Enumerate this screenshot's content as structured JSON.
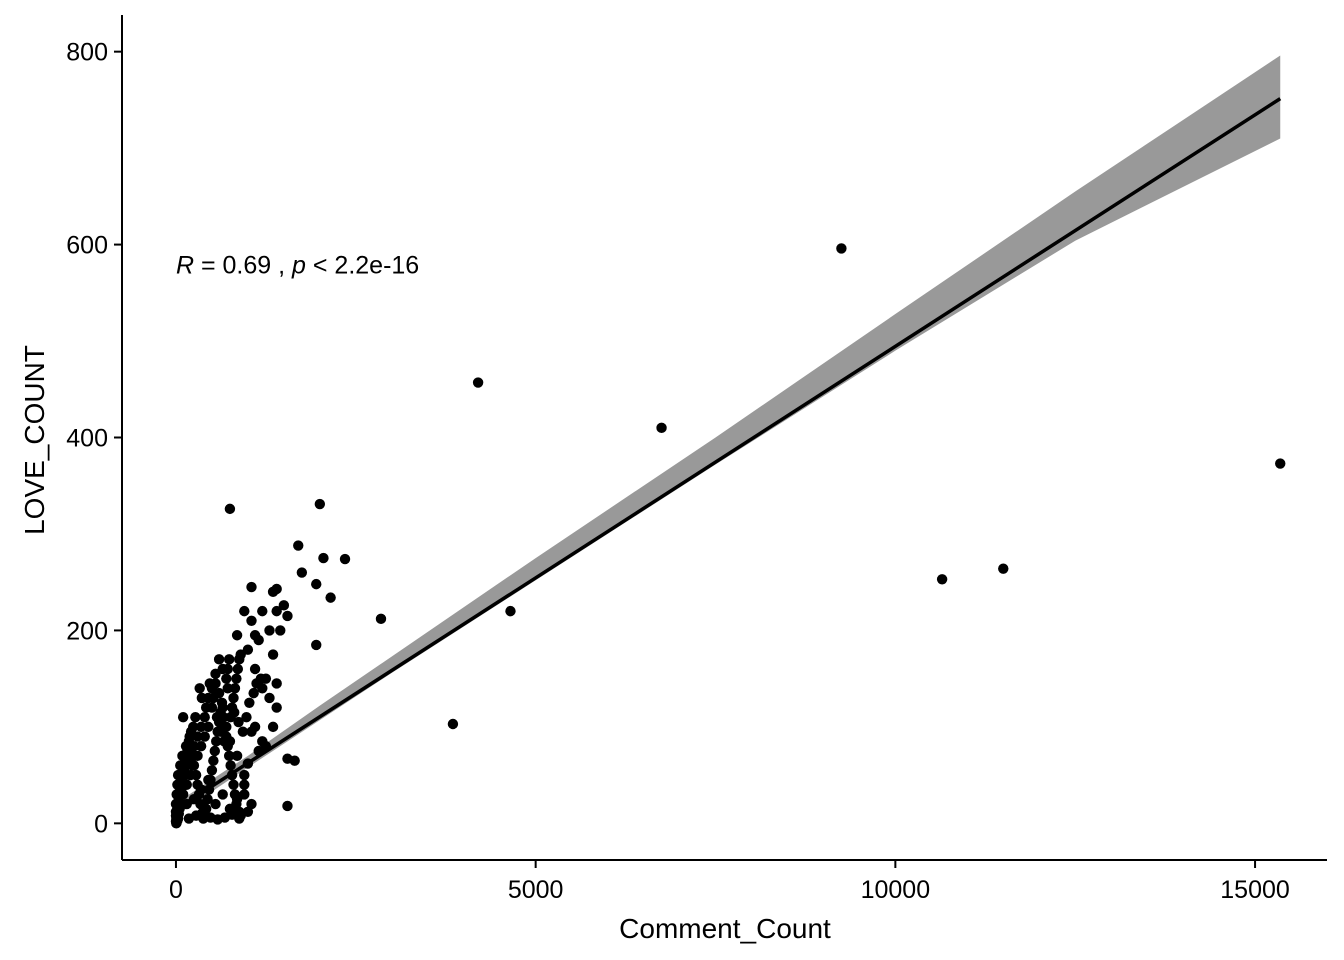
{
  "chart_data": {
    "type": "scatter",
    "xlabel": "Comment_Count",
    "ylabel": "LOVE_COUNT",
    "xlim": [
      -750,
      16000
    ],
    "ylim": [
      -38,
      838
    ],
    "x_ticks": [
      0,
      5000,
      10000,
      15000
    ],
    "x_tick_labels": [
      "0",
      "5000",
      "10000",
      "15000"
    ],
    "y_ticks": [
      0,
      200,
      400,
      600,
      800
    ],
    "y_tick_labels": [
      "0",
      "200",
      "400",
      "600",
      "800"
    ],
    "grid": false,
    "legend": "none",
    "annotation": {
      "r_symbol": "R",
      "r_text": " = 0.69 , ",
      "p_symbol": "p",
      "p_text": " < 2.2e-16",
      "x": 0,
      "y": 570
    },
    "regression": {
      "x_range": [
        0,
        15350
      ],
      "intercept": 14.5,
      "slope": 0.048,
      "ci_lower": [
        [
          0,
          8
        ],
        [
          1000,
          58
        ],
        [
          2000,
          107
        ],
        [
          3000,
          156
        ],
        [
          5000,
          252
        ],
        [
          7500,
          372
        ],
        [
          10000,
          490
        ],
        [
          12500,
          604
        ],
        [
          15350,
          710
        ]
      ],
      "ci_upper": [
        [
          0,
          21
        ],
        [
          1000,
          70
        ],
        [
          2000,
          122
        ],
        [
          3000,
          173
        ],
        [
          5000,
          275
        ],
        [
          7500,
          400
        ],
        [
          10000,
          528
        ],
        [
          12500,
          655
        ],
        [
          15350,
          796
        ]
      ]
    },
    "points": [
      [
        9250,
        596
      ],
      [
        4200,
        457
      ],
      [
        6750,
        410
      ],
      [
        15350,
        373
      ],
      [
        11500,
        264
      ],
      [
        10650,
        253
      ],
      [
        4650,
        220
      ],
      [
        3850,
        103
      ],
      [
        2850,
        212
      ],
      [
        2350,
        274
      ],
      [
        2000,
        331
      ],
      [
        2050,
        275
      ],
      [
        2150,
        234
      ],
      [
        1950,
        248
      ],
      [
        1700,
        288
      ],
      [
        1750,
        260
      ],
      [
        1950,
        185
      ],
      [
        1550,
        67
      ],
      [
        1650,
        65
      ],
      [
        1550,
        18
      ],
      [
        750,
        326
      ],
      [
        1050,
        245
      ],
      [
        1400,
        243
      ],
      [
        1350,
        240
      ],
      [
        1500,
        226
      ],
      [
        1550,
        215
      ],
      [
        1450,
        200
      ],
      [
        1400,
        220
      ],
      [
        1300,
        200
      ],
      [
        1200,
        220
      ],
      [
        1150,
        190
      ],
      [
        1100,
        195
      ],
      [
        1050,
        210
      ],
      [
        950,
        220
      ],
      [
        850,
        195
      ],
      [
        900,
        175
      ],
      [
        1000,
        180
      ],
      [
        1100,
        160
      ],
      [
        1200,
        140
      ],
      [
        1250,
        150
      ],
      [
        1300,
        130
      ],
      [
        1350,
        175
      ],
      [
        1400,
        145
      ],
      [
        1400,
        120
      ],
      [
        1350,
        100
      ],
      [
        1250,
        80
      ],
      [
        1200,
        85
      ],
      [
        1150,
        75
      ],
      [
        1100,
        100
      ],
      [
        1050,
        95
      ],
      [
        1000,
        62
      ],
      [
        950,
        50
      ],
      [
        1050,
        20
      ],
      [
        1000,
        12
      ],
      [
        950,
        40
      ],
      [
        850,
        70
      ],
      [
        750,
        85
      ],
      [
        700,
        100
      ],
      [
        650,
        120
      ],
      [
        600,
        135
      ],
      [
        550,
        145
      ],
      [
        500,
        140
      ],
      [
        450,
        130
      ],
      [
        400,
        110
      ],
      [
        350,
        100
      ],
      [
        300,
        90
      ],
      [
        250,
        80
      ],
      [
        200,
        70
      ],
      [
        150,
        60
      ],
      [
        100,
        110
      ],
      [
        120,
        50
      ],
      [
        80,
        40
      ],
      [
        60,
        30
      ],
      [
        50,
        20
      ],
      [
        40,
        10
      ],
      [
        30,
        5
      ],
      [
        20,
        3
      ],
      [
        10,
        1
      ],
      [
        5,
        0
      ],
      [
        0,
        2
      ],
      [
        0,
        8
      ],
      [
        20,
        15
      ],
      [
        40,
        25
      ],
      [
        70,
        35
      ],
      [
        90,
        45
      ],
      [
        110,
        55
      ],
      [
        130,
        65
      ],
      [
        160,
        75
      ],
      [
        180,
        85
      ],
      [
        210,
        95
      ],
      [
        230,
        60
      ],
      [
        260,
        70
      ],
      [
        280,
        50
      ],
      [
        300,
        40
      ],
      [
        320,
        30
      ],
      [
        340,
        20
      ],
      [
        360,
        10
      ],
      [
        380,
        5
      ],
      [
        400,
        8
      ],
      [
        420,
        15
      ],
      [
        440,
        25
      ],
      [
        460,
        35
      ],
      [
        480,
        45
      ],
      [
        500,
        55
      ],
      [
        520,
        65
      ],
      [
        540,
        75
      ],
      [
        560,
        85
      ],
      [
        580,
        95
      ],
      [
        600,
        105
      ],
      [
        620,
        115
      ],
      [
        640,
        125
      ],
      [
        660,
        110
      ],
      [
        680,
        100
      ],
      [
        700,
        90
      ],
      [
        720,
        80
      ],
      [
        740,
        70
      ],
      [
        760,
        60
      ],
      [
        780,
        50
      ],
      [
        800,
        40
      ],
      [
        820,
        30
      ],
      [
        840,
        20
      ],
      [
        860,
        10
      ],
      [
        880,
        5
      ],
      [
        900,
        8
      ],
      [
        760,
        110
      ],
      [
        780,
        120
      ],
      [
        800,
        130
      ],
      [
        820,
        140
      ],
      [
        840,
        150
      ],
      [
        860,
        160
      ],
      [
        880,
        170
      ],
      [
        700,
        150
      ],
      [
        720,
        160
      ],
      [
        740,
        170
      ],
      [
        650,
        160
      ],
      [
        600,
        170
      ],
      [
        550,
        155
      ],
      [
        500,
        120
      ],
      [
        450,
        100
      ],
      [
        400,
        90
      ],
      [
        350,
        80
      ],
      [
        300,
        70
      ],
      [
        250,
        60
      ],
      [
        200,
        50
      ],
      [
        150,
        40
      ],
      [
        100,
        30
      ],
      [
        50,
        15
      ],
      [
        150,
        20
      ],
      [
        250,
        25
      ],
      [
        350,
        35
      ],
      [
        450,
        45
      ],
      [
        550,
        20
      ],
      [
        650,
        30
      ],
      [
        750,
        15
      ],
      [
        850,
        25
      ],
      [
        950,
        30
      ],
      [
        180,
        5
      ],
      [
        280,
        8
      ],
      [
        380,
        12
      ],
      [
        480,
        6
      ],
      [
        580,
        4
      ],
      [
        680,
        6
      ],
      [
        780,
        9
      ],
      [
        880,
        12
      ],
      [
        330,
        140
      ],
      [
        360,
        130
      ],
      [
        420,
        120
      ],
      [
        470,
        145
      ],
      [
        520,
        130
      ],
      [
        570,
        110
      ],
      [
        620,
        95
      ],
      [
        670,
        85
      ],
      [
        720,
        140
      ],
      [
        810,
        115
      ],
      [
        870,
        105
      ],
      [
        930,
        95
      ],
      [
        980,
        110
      ],
      [
        1020,
        125
      ],
      [
        1080,
        135
      ],
      [
        1120,
        145
      ],
      [
        1180,
        150
      ],
      [
        240,
        100
      ],
      [
        270,
        110
      ],
      [
        190,
        90
      ],
      [
        140,
        80
      ],
      [
        90,
        70
      ],
      [
        60,
        60
      ],
      [
        30,
        50
      ],
      [
        20,
        40
      ],
      [
        10,
        30
      ],
      [
        0,
        20
      ],
      [
        0,
        12
      ],
      [
        5,
        5
      ],
      [
        15,
        10
      ],
      [
        25,
        18
      ],
      [
        35,
        22
      ],
      [
        45,
        28
      ],
      [
        55,
        33
      ]
    ]
  }
}
